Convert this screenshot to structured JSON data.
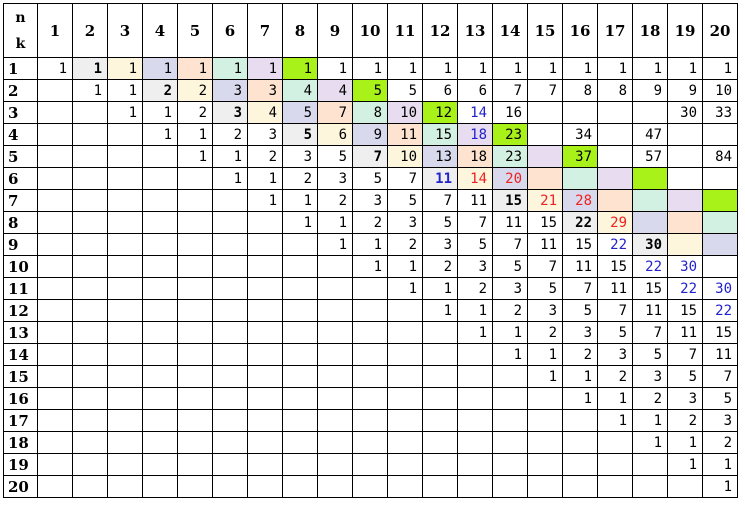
{
  "header": {
    "n_label": "n",
    "k_label": "k"
  },
  "columns": [
    "1",
    "2",
    "3",
    "4",
    "5",
    "6",
    "7",
    "8",
    "9",
    "10",
    "11",
    "12",
    "13",
    "14",
    "15",
    "16",
    "17",
    "18",
    "19",
    "20"
  ],
  "rows": [
    {
      "k": "1",
      "cells": [
        "1",
        "1",
        "1",
        "1",
        "1",
        "1",
        "1",
        "1",
        "1",
        "1",
        "1",
        "1",
        "1",
        "1",
        "1",
        "1",
        "1",
        "1",
        "1",
        "1"
      ]
    },
    {
      "k": "2",
      "cells": [
        "",
        "1",
        "1",
        "2",
        "2",
        "3",
        "3",
        "4",
        "4",
        "5",
        "5",
        "6",
        "6",
        "7",
        "7",
        "8",
        "8",
        "9",
        "9",
        "10"
      ]
    },
    {
      "k": "3",
      "cells": [
        "",
        "",
        "1",
        "1",
        "2",
        "3",
        "4",
        "5",
        "7",
        "8",
        "10",
        "12",
        "14",
        "16",
        "",
        "",
        "",
        "",
        "30",
        "33"
      ]
    },
    {
      "k": "4",
      "cells": [
        "",
        "",
        "",
        "1",
        "1",
        "2",
        "3",
        "5",
        "6",
        "9",
        "11",
        "15",
        "18",
        "23",
        "",
        "34",
        "",
        "47",
        "",
        ""
      ]
    },
    {
      "k": "5",
      "cells": [
        "",
        "",
        "",
        "",
        "1",
        "1",
        "2",
        "3",
        "5",
        "7",
        "10",
        "13",
        "18",
        "23",
        "",
        "37",
        "",
        "57",
        "",
        "84"
      ]
    },
    {
      "k": "6",
      "cells": [
        "",
        "",
        "",
        "",
        "",
        "1",
        "1",
        "2",
        "3",
        "5",
        "7",
        "11",
        "14",
        "20",
        "",
        "",
        "",
        "",
        "",
        ""
      ]
    },
    {
      "k": "7",
      "cells": [
        "",
        "",
        "",
        "",
        "",
        "",
        "1",
        "1",
        "2",
        "3",
        "5",
        "7",
        "11",
        "15",
        "21",
        "28",
        "",
        "",
        "",
        ""
      ]
    },
    {
      "k": "8",
      "cells": [
        "",
        "",
        "",
        "",
        "",
        "",
        "",
        "1",
        "1",
        "2",
        "3",
        "5",
        "7",
        "11",
        "15",
        "22",
        "29",
        "",
        "",
        ""
      ]
    },
    {
      "k": "9",
      "cells": [
        "",
        "",
        "",
        "",
        "",
        "",
        "",
        "",
        "1",
        "1",
        "2",
        "3",
        "5",
        "7",
        "11",
        "15",
        "22",
        "30",
        "",
        ""
      ]
    },
    {
      "k": "10",
      "cells": [
        "",
        "",
        "",
        "",
        "",
        "",
        "",
        "",
        "",
        "1",
        "1",
        "2",
        "3",
        "5",
        "7",
        "11",
        "15",
        "22",
        "30",
        ""
      ]
    },
    {
      "k": "11",
      "cells": [
        "",
        "",
        "",
        "",
        "",
        "",
        "",
        "",
        "",
        "",
        "1",
        "1",
        "2",
        "3",
        "5",
        "7",
        "11",
        "15",
        "22",
        "30"
      ]
    },
    {
      "k": "12",
      "cells": [
        "",
        "",
        "",
        "",
        "",
        "",
        "",
        "",
        "",
        "",
        "",
        "1",
        "1",
        "2",
        "3",
        "5",
        "7",
        "11",
        "15",
        "22"
      ]
    },
    {
      "k": "13",
      "cells": [
        "",
        "",
        "",
        "",
        "",
        "",
        "",
        "",
        "",
        "",
        "",
        "",
        "1",
        "1",
        "2",
        "3",
        "5",
        "7",
        "11",
        "15"
      ]
    },
    {
      "k": "14",
      "cells": [
        "",
        "",
        "",
        "",
        "",
        "",
        "",
        "",
        "",
        "",
        "",
        "",
        "",
        "1",
        "1",
        "2",
        "3",
        "5",
        "7",
        "11"
      ]
    },
    {
      "k": "15",
      "cells": [
        "",
        "",
        "",
        "",
        "",
        "",
        "",
        "",
        "",
        "",
        "",
        "",
        "",
        "",
        "1",
        "1",
        "2",
        "3",
        "5",
        "7"
      ]
    },
    {
      "k": "16",
      "cells": [
        "",
        "",
        "",
        "",
        "",
        "",
        "",
        "",
        "",
        "",
        "",
        "",
        "",
        "",
        "",
        "1",
        "1",
        "2",
        "3",
        "5"
      ]
    },
    {
      "k": "17",
      "cells": [
        "",
        "",
        "",
        "",
        "",
        "",
        "",
        "",
        "",
        "",
        "",
        "",
        "",
        "",
        "",
        "",
        "1",
        "1",
        "2",
        "3"
      ]
    },
    {
      "k": "18",
      "cells": [
        "",
        "",
        "",
        "",
        "",
        "",
        "",
        "",
        "",
        "",
        "",
        "",
        "",
        "",
        "",
        "",
        "",
        "1",
        "1",
        "2"
      ]
    },
    {
      "k": "19",
      "cells": [
        "",
        "",
        "",
        "",
        "",
        "",
        "",
        "",
        "",
        "",
        "",
        "",
        "",
        "",
        "",
        "",
        "",
        "",
        "1",
        "1"
      ]
    },
    {
      "k": "20",
      "cells": [
        "",
        "",
        "",
        "",
        "",
        "",
        "",
        "",
        "",
        "",
        "",
        "",
        "",
        "",
        "",
        "",
        "",
        "",
        "",
        "1"
      ]
    }
  ],
  "palette": {
    "grey": "#efefef",
    "yellow": "#fdf5dc",
    "blue": "#d9d9ee",
    "orange": "#fde3d0",
    "mint": "#d3f1e3",
    "lilac": "#e8ddf0",
    "lime": "#a8f21a",
    "red": "#ee2222",
    "navy": "#2222cc"
  },
  "diagonal_colors": [
    "grey",
    "yellow",
    "blue",
    "orange",
    "mint",
    "lilac",
    "lime"
  ],
  "bold_cells": [
    [
      1,
      2
    ],
    [
      2,
      4
    ],
    [
      3,
      6
    ],
    [
      4,
      8
    ],
    [
      5,
      10
    ],
    [
      6,
      12
    ],
    [
      7,
      14
    ],
    [
      8,
      16
    ],
    [
      9,
      18
    ]
  ],
  "red_text_cells": [
    [
      6,
      13
    ],
    [
      6,
      14
    ],
    [
      7,
      15
    ],
    [
      7,
      16
    ],
    [
      8,
      17
    ]
  ],
  "navy_text_cells": [
    [
      3,
      13
    ],
    [
      4,
      13
    ],
    [
      6,
      12
    ],
    [
      9,
      17
    ],
    [
      10,
      18
    ],
    [
      10,
      19
    ],
    [
      11,
      19
    ],
    [
      11,
      20
    ],
    [
      12,
      20
    ]
  ]
}
